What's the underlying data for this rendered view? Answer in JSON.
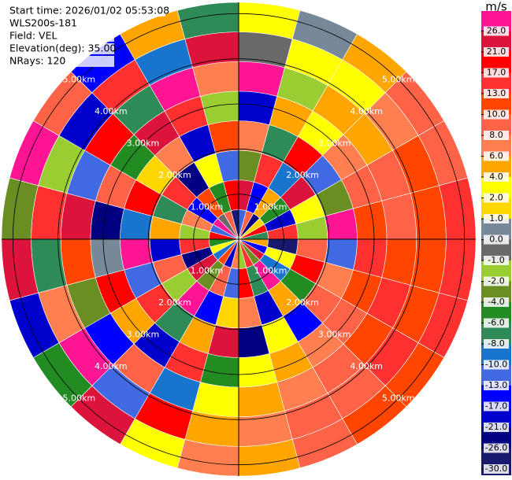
{
  "chart_data": {
    "type": "ppi",
    "header": [
      "Start time: 2026/01/02 05:53:08",
      "WLS200s-181",
      "Field: VEL",
      "Elevation(deg): 35.00",
      "NRays: 120"
    ],
    "rlim": [
      0,
      5.25
    ],
    "range_rings": [
      {
        "value": 1,
        "label": "1.00km"
      },
      {
        "value": 2,
        "label": "2.00km"
      },
      {
        "value": 3,
        "label": "3.00km"
      },
      {
        "value": 4,
        "label": "4.00km"
      },
      {
        "value": 5,
        "label": "5.00km"
      }
    ],
    "azimuths": [
      7.5,
      22.5,
      37.5,
      52.5,
      67.5,
      82.5,
      97.5,
      112.5,
      127.5,
      142.5,
      157.5,
      172.5,
      187.5,
      202.5,
      217.5,
      232.5,
      247.5,
      262.5,
      277.5,
      292.5,
      307.5,
      322.5,
      337.5,
      352.5
    ],
    "values": [
      [
        -13,
        21,
        -4,
        6,
        -21,
        26,
        -1,
        2
      ],
      [
        8,
        -17,
        13,
        -8,
        4,
        -2,
        2,
        0
      ],
      [
        -26,
        4,
        -10,
        17,
        2,
        4,
        2,
        4
      ],
      [
        1,
        -6,
        21,
        -13,
        6,
        4,
        6,
        8
      ],
      [
        17,
        -21,
        2,
        -4,
        8,
        8,
        10,
        8
      ],
      [
        -8,
        13,
        -2,
        26,
        10,
        8,
        10,
        13
      ],
      [
        4,
        -30,
        8,
        -13,
        13,
        10,
        10,
        13
      ],
      [
        -17,
        2,
        17,
        6,
        10,
        13,
        10,
        13
      ],
      [
        21,
        -10,
        -6,
        8,
        8,
        10,
        13,
        10
      ],
      [
        -4,
        26,
        4,
        -17,
        6,
        8,
        8,
        10
      ],
      [
        13,
        -8,
        -21,
        2,
        4,
        6,
        8,
        8
      ],
      [
        -2,
        17,
        6,
        -26,
        2,
        4,
        6,
        4
      ],
      [
        6,
        -13,
        1,
        21,
        -6,
        2,
        4,
        6
      ],
      [
        -21,
        8,
        -17,
        4,
        13,
        -10,
        17,
        2
      ],
      [
        10,
        -4,
        26,
        -8,
        -21,
        8,
        -13,
        21
      ],
      [
        -10,
        21,
        -2,
        13,
        4,
        -17,
        26,
        -6
      ],
      [
        2,
        -26,
        8,
        -13,
        17,
        -4,
        6,
        -21
      ],
      [
        -6,
        13,
        -21,
        26,
        0,
        10,
        -8,
        21
      ],
      [
        17,
        -2,
        4,
        -10,
        -26,
        21,
        13,
        -4
      ],
      [
        -13,
        6,
        -8,
        17,
        8,
        -13,
        -2,
        26
      ],
      [
        26,
        -17,
        13,
        1,
        -6,
        17,
        -21,
        8
      ],
      [
        -1,
        10,
        -26,
        6,
        21,
        -8,
        13,
        -17
      ],
      [
        8,
        -6,
        2,
        -21,
        13,
        26,
        -10,
        4
      ],
      [
        -30,
        17,
        -13,
        10,
        -2,
        6,
        21,
        -8
      ]
    ],
    "colorbar": {
      "title": "m/s",
      "ticks": [
        {
          "value": -30,
          "label": "-30.0"
        },
        {
          "value": -26,
          "label": "-26.0"
        },
        {
          "value": -21,
          "label": "-21.0"
        },
        {
          "value": -17,
          "label": "-17.0"
        },
        {
          "value": -13,
          "label": "-13.0"
        },
        {
          "value": -10,
          "label": "-10.0"
        },
        {
          "value": -8,
          "label": "-8.0"
        },
        {
          "value": -6,
          "label": "-6.0"
        },
        {
          "value": -4,
          "label": "-4.0"
        },
        {
          "value": -2,
          "label": "-2.0"
        },
        {
          "value": -1,
          "label": "-1.0"
        },
        {
          "value": 0,
          "label": "0.0"
        },
        {
          "value": 1,
          "label": "1.0"
        },
        {
          "value": 2,
          "label": "2.0"
        },
        {
          "value": 4,
          "label": "4.0"
        },
        {
          "value": 6,
          "label": "6.0"
        },
        {
          "value": 8,
          "label": "8.0"
        },
        {
          "value": 10,
          "label": "10.0"
        },
        {
          "value": 13,
          "label": "13.0"
        },
        {
          "value": 17,
          "label": "17.0"
        },
        {
          "value": 21,
          "label": "21.0"
        },
        {
          "value": 26,
          "label": "26.0"
        }
      ],
      "colors": [
        "#191970",
        "#000080",
        "#0000cd",
        "#0000ff",
        "#4169e1",
        "#1874cd",
        "#2e8b57",
        "#228b22",
        "#6b8e23",
        "#9acd32",
        "#696969",
        "#778899",
        "#ffd700",
        "#ffff00",
        "#ffa500",
        "#ff7f50",
        "#ff6347",
        "#ff4500",
        "#ff3030",
        "#ff0000",
        "#dc143c"
      ],
      "over_color": "#ff1493"
    }
  }
}
